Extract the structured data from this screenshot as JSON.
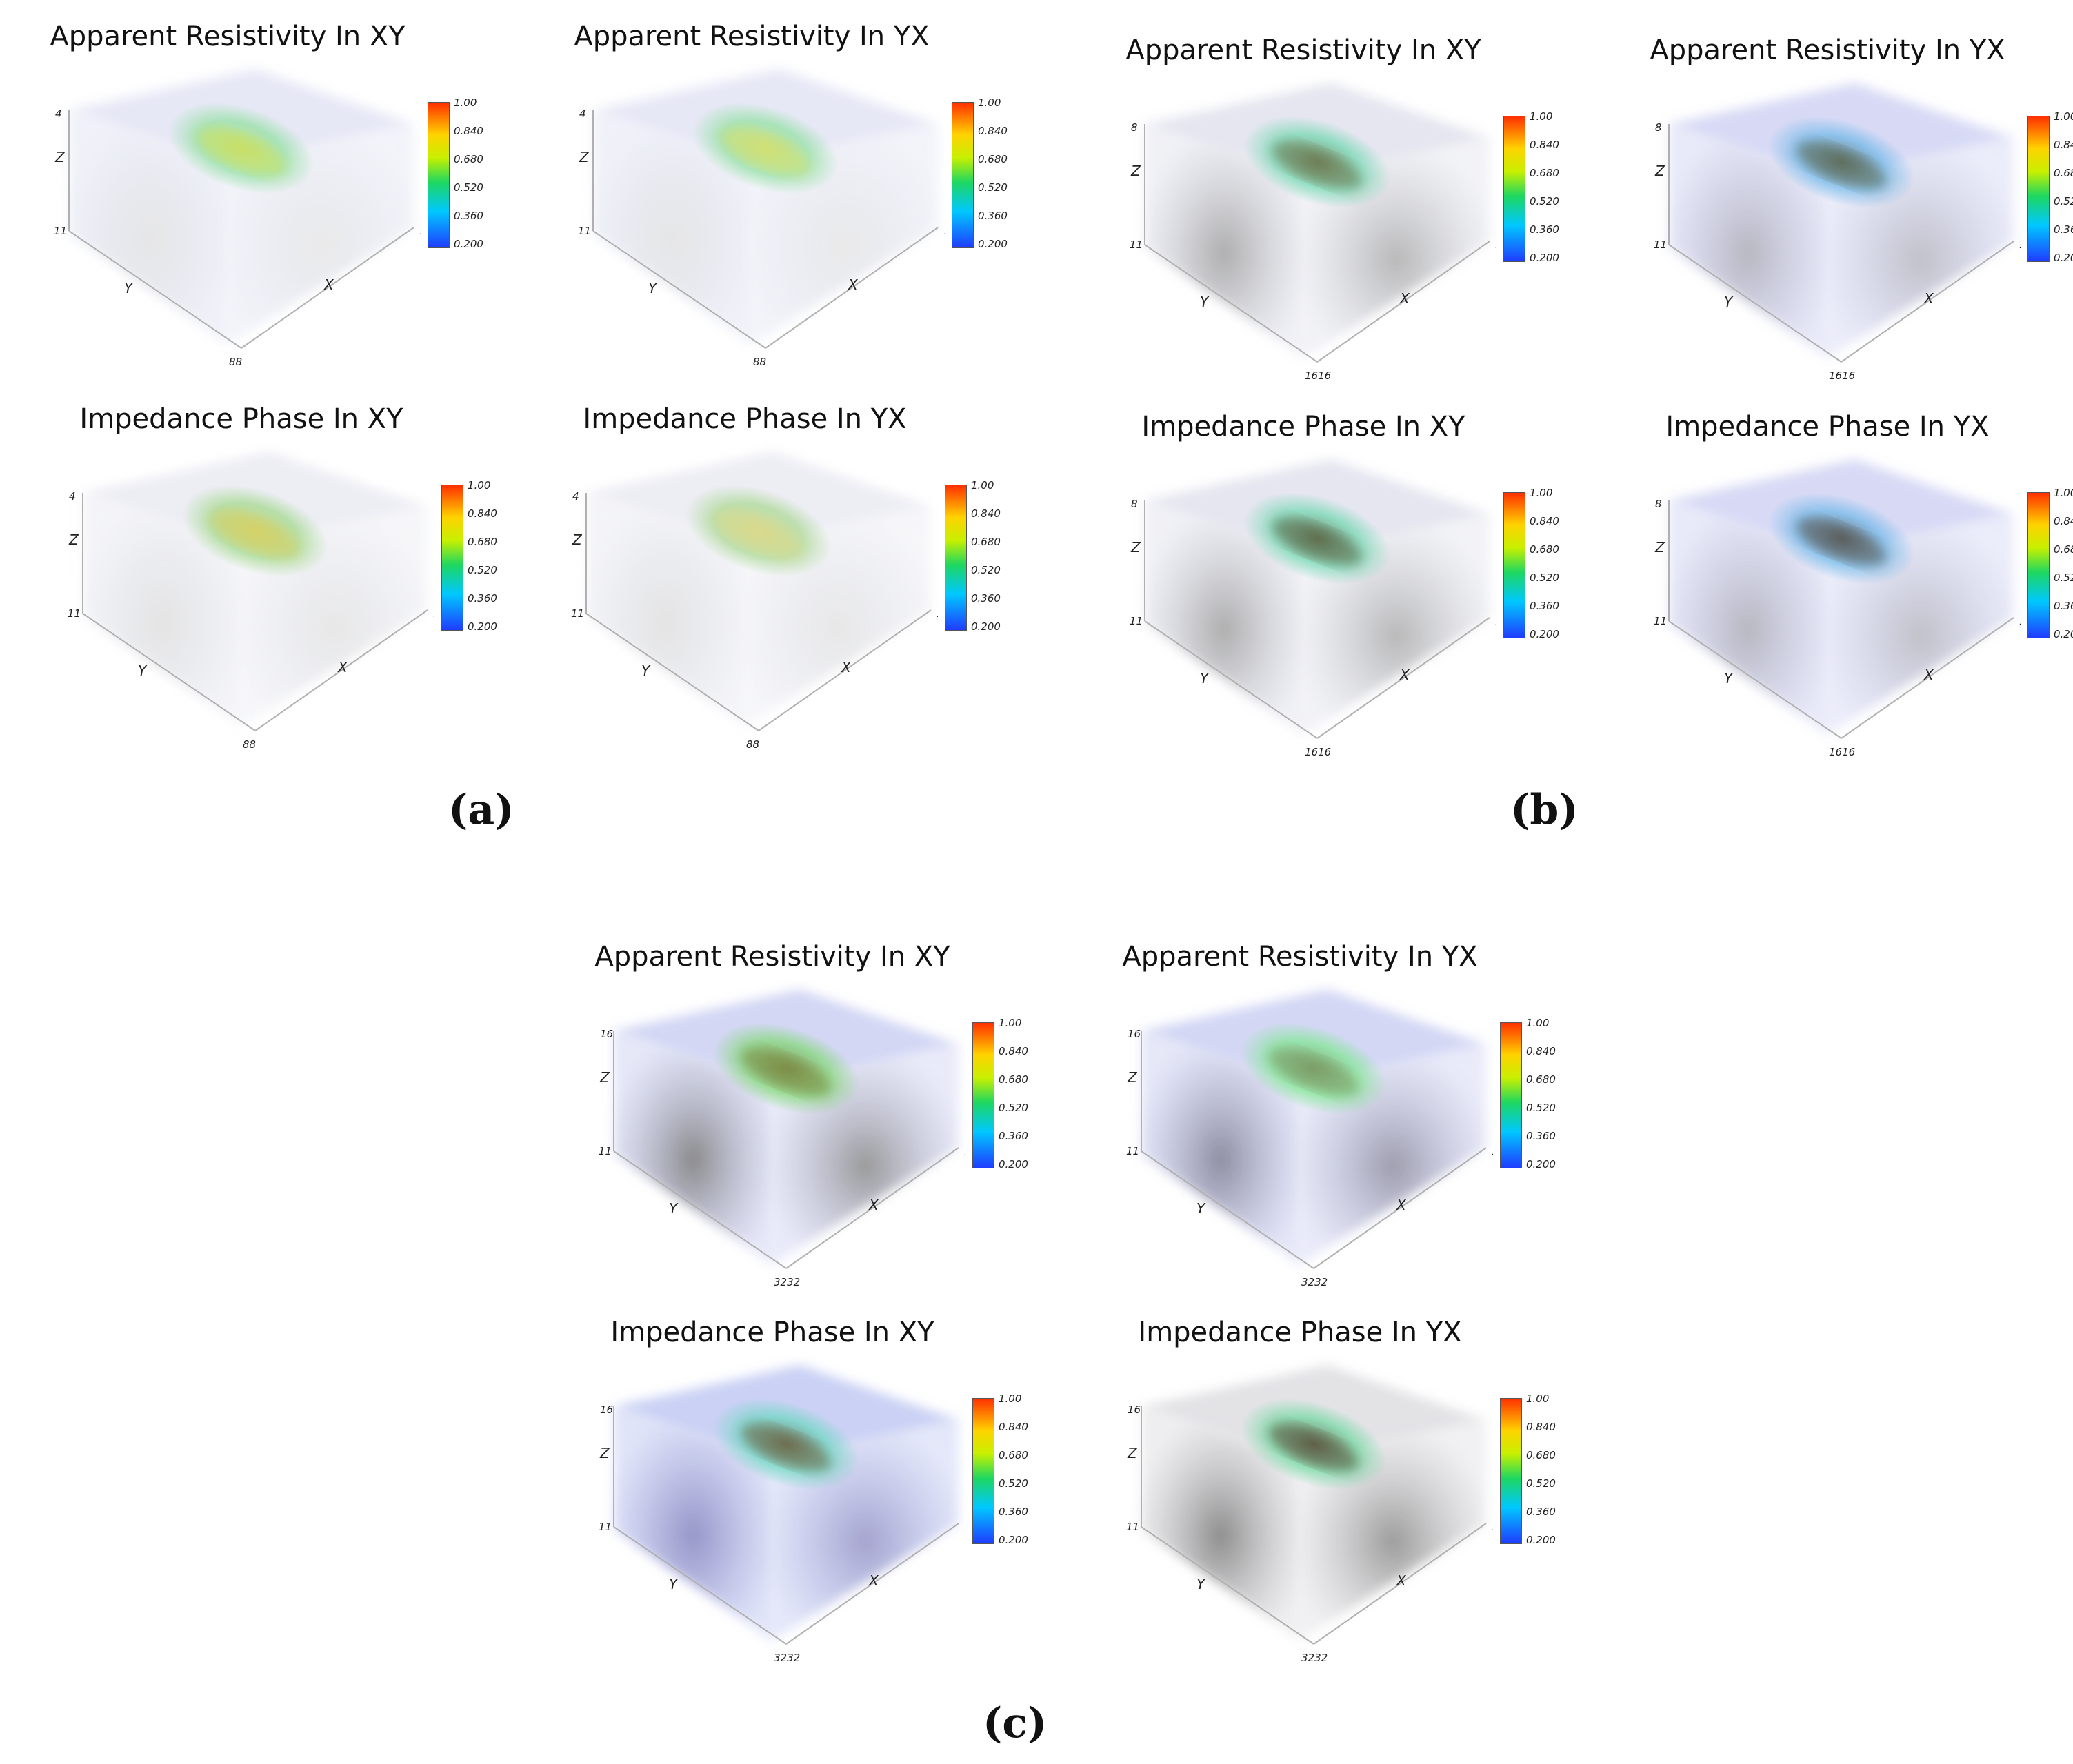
{
  "panels": [
    {
      "title": "Apparent Resistivity In XY",
      "zmax": "4",
      "edge": "88",
      "theme": "a1"
    },
    {
      "title": "Apparent Resistivity In YX",
      "zmax": "4",
      "edge": "88",
      "theme": "a2"
    },
    {
      "title": "Impedance Phase In XY",
      "zmax": "4",
      "edge": "88",
      "theme": "a3"
    },
    {
      "title": "Impedance Phase In YX",
      "zmax": "4",
      "edge": "88",
      "theme": "a4"
    },
    {
      "title": "Apparent Resistivity In XY",
      "zmax": "8",
      "edge": "1616",
      "theme": "b1"
    },
    {
      "title": "Apparent Resistivity In YX",
      "zmax": "8",
      "edge": "1616",
      "theme": "b2"
    },
    {
      "title": "Impedance Phase In XY",
      "zmax": "8",
      "edge": "1616",
      "theme": "b3"
    },
    {
      "title": "Impedance Phase In YX",
      "zmax": "8",
      "edge": "1616",
      "theme": "b4"
    },
    {
      "title": "Apparent Resistivity In XY",
      "zmax": "16",
      "edge": "3232",
      "theme": "c1"
    },
    {
      "title": "Apparent Resistivity In YX",
      "zmax": "16",
      "edge": "3232",
      "theme": "c2"
    },
    {
      "title": "Impedance Phase In XY",
      "zmax": "16",
      "edge": "3232",
      "theme": "c3"
    },
    {
      "title": "Impedance Phase In YX",
      "zmax": "16",
      "edge": "3232",
      "theme": "c4"
    }
  ],
  "axis_labels": {
    "z": "Z",
    "y": "Y",
    "x": "X",
    "origin": "1",
    "origin_double": "11"
  },
  "colorbar_ticks": [
    "1.00",
    "0.840",
    "0.680",
    "0.520",
    "0.360",
    "0.200"
  ],
  "subfigure_labels": {
    "a": "(a)",
    "b": "(b)",
    "c": "(c)"
  },
  "themes": {
    "a1": {
      "box": "#c8cde8",
      "dark": "#dcdcdc",
      "blob": "#8fe0a0",
      "core": "#c8e060"
    },
    "a2": {
      "box": "#c8cde8",
      "dark": "#dcdcdc",
      "blob": "#8fe0a0",
      "core": "#d0e070"
    },
    "a3": {
      "box": "#d6d8e6",
      "dark": "#d8d8d8",
      "blob": "#9fd888",
      "core": "#d4d060"
    },
    "a4": {
      "box": "#d6d8e6",
      "dark": "#d8d8d8",
      "blob": "#a8d890",
      "core": "#d8d888"
    },
    "b1": {
      "box": "#c6c8dc",
      "dark": "#8c8c8c",
      "blob": "#6fd8b0",
      "core": "#6a7a50"
    },
    "b2": {
      "box": "#a8aee8",
      "dark": "#9a9aa6",
      "blob": "#6fb8e8",
      "core": "#5a6a58"
    },
    "b3": {
      "box": "#c6c8dc",
      "dark": "#8c8c8c",
      "blob": "#6fd8b0",
      "core": "#5a6a48"
    },
    "b4": {
      "box": "#a8aee8",
      "dark": "#9a9aa6",
      "blob": "#6fb8e8",
      "core": "#565a58"
    },
    "c1": {
      "box": "#9ea6e6",
      "dark": "#5a5a5a",
      "blob": "#7ed870",
      "core": "#7a8a40"
    },
    "c2": {
      "box": "#9ea6e6",
      "dark": "#60607a",
      "blob": "#7ee890",
      "core": "#7a9a60"
    },
    "c3": {
      "box": "#8a98e6",
      "dark": "#6a6ab0",
      "blob": "#6ad8c0",
      "core": "#6a6a48"
    },
    "c4": {
      "box": "#c0c0c8",
      "dark": "#5e5e5e",
      "blob": "#6fd8a0",
      "core": "#5a5a40"
    }
  }
}
